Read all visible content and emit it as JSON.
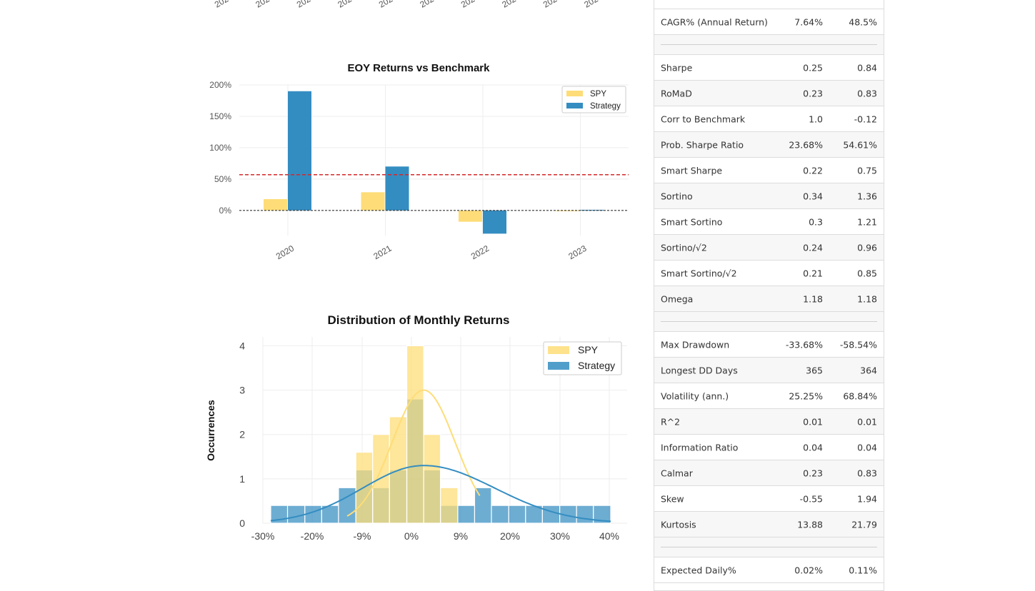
{
  "top_axis_ticks": [
    "202",
    "202",
    "202",
    "202",
    "202",
    "202",
    "202",
    "202",
    "202",
    "202"
  ],
  "chart_data": [
    {
      "type": "bar",
      "title": "EOY Returns  vs Benchmark",
      "categories": [
        "2020",
        "2021",
        "2022",
        "2023"
      ],
      "series": [
        {
          "name": "SPY",
          "color": "#fedd78",
          "values": [
            18,
            29,
            -18,
            0
          ]
        },
        {
          "name": "Strategy",
          "color": "#348dc1",
          "values": [
            190,
            70,
            -37,
            1
          ]
        }
      ],
      "yticks": [
        "200%",
        "150%",
        "100%",
        "50%",
        "0%"
      ],
      "ylim": [
        -40,
        200
      ],
      "mean_line": 57,
      "mean_line_color": "#d62728",
      "legend": "top-right",
      "grid": true
    },
    {
      "type": "bar",
      "title": "Distribution of Monthly Returns",
      "ylabel": "Occurrences",
      "xticks": [
        "-30%",
        "-20%",
        "-9%",
        "0%",
        "9%",
        "20%",
        "30%",
        "40%"
      ],
      "yticks": [
        "0",
        "1",
        "2",
        "3",
        "4"
      ],
      "ylim": [
        0,
        4.2
      ],
      "bin_edges": [
        -28,
        -24.7,
        -21.3,
        -18,
        -14.7,
        -11.3,
        -8,
        -4.7,
        -1.3,
        2,
        5.3,
        8.7,
        12,
        15.3,
        18.7,
        22,
        25.3,
        28.7,
        32,
        35.3,
        38.7
      ],
      "series": [
        {
          "name": "SPY",
          "color": "#fedd78",
          "counts": [
            0,
            0,
            0,
            0,
            0,
            1.6,
            2.0,
            2.4,
            4.0,
            2.0,
            0.8,
            0,
            0,
            0,
            0,
            0,
            0,
            0,
            0,
            0
          ]
        },
        {
          "name": "Strategy",
          "color": "#348dc1",
          "counts": [
            0.4,
            0.4,
            0.4,
            0.4,
            0.8,
            1.2,
            0.8,
            1.2,
            2.8,
            1.2,
            0.4,
            0.4,
            0.8,
            0.4,
            0.4,
            0.4,
            0.4,
            0.4,
            0.4,
            0.4
          ]
        }
      ],
      "legend": "top-right",
      "grid": true
    }
  ],
  "metrics": {
    "rows": [
      {
        "kind": "top"
      },
      {
        "label": "CAGR% (Annual Return)",
        "benchmark": "7.64%",
        "strategy": "48.5%"
      },
      {
        "kind": "sep"
      },
      {
        "label": "Sharpe",
        "benchmark": "0.25",
        "strategy": "0.84"
      },
      {
        "label": "RoMaD",
        "benchmark": "0.23",
        "strategy": "0.83"
      },
      {
        "label": "Corr to Benchmark",
        "benchmark": "1.0",
        "strategy": "-0.12"
      },
      {
        "label": "Prob. Sharpe Ratio",
        "benchmark": "23.68%",
        "strategy": "54.61%"
      },
      {
        "label": "Smart Sharpe",
        "benchmark": "0.22",
        "strategy": "0.75"
      },
      {
        "label": "Sortino",
        "benchmark": "0.34",
        "strategy": "1.36"
      },
      {
        "label": "Smart Sortino",
        "benchmark": "0.3",
        "strategy": "1.21"
      },
      {
        "label": "Sortino/√2",
        "benchmark": "0.24",
        "strategy": "0.96"
      },
      {
        "label": "Smart Sortino/√2",
        "benchmark": "0.21",
        "strategy": "0.85"
      },
      {
        "label": "Omega",
        "benchmark": "1.18",
        "strategy": "1.18"
      },
      {
        "kind": "sep"
      },
      {
        "label": "Max Drawdown",
        "benchmark": "-33.68%",
        "strategy": "-58.54%"
      },
      {
        "label": "Longest DD Days",
        "benchmark": "365",
        "strategy": "364"
      },
      {
        "label": "Volatility (ann.)",
        "benchmark": "25.25%",
        "strategy": "68.84%"
      },
      {
        "label": "R^2",
        "benchmark": "0.01",
        "strategy": "0.01"
      },
      {
        "label": "Information Ratio",
        "benchmark": "0.04",
        "strategy": "0.04"
      },
      {
        "label": "Calmar",
        "benchmark": "0.23",
        "strategy": "0.83"
      },
      {
        "label": "Skew",
        "benchmark": "-0.55",
        "strategy": "1.94"
      },
      {
        "label": "Kurtosis",
        "benchmark": "13.88",
        "strategy": "21.79"
      },
      {
        "kind": "sep"
      },
      {
        "label": "Expected Daily%",
        "benchmark": "0.02%",
        "strategy": "0.11%"
      },
      {
        "kind": "top"
      }
    ]
  }
}
